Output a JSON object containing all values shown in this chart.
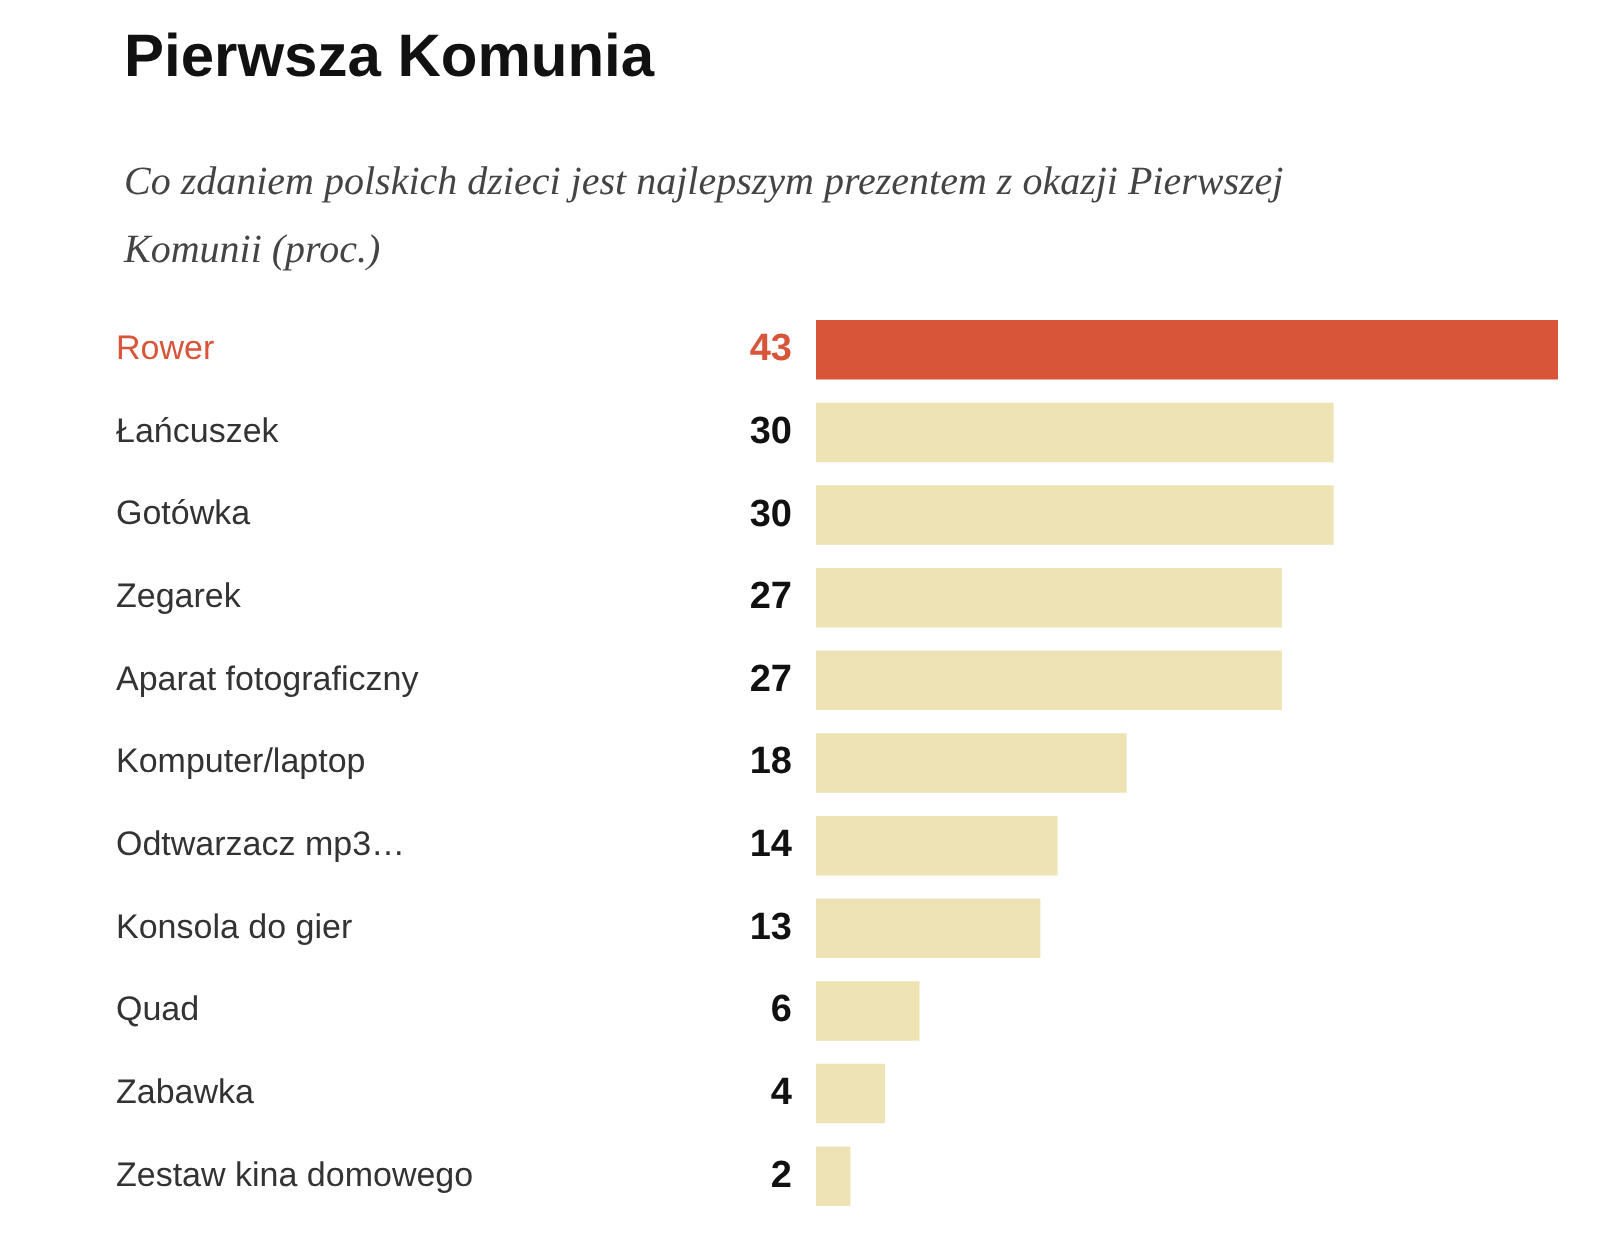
{
  "chart_data": {
    "type": "bar",
    "orientation": "horizontal",
    "title": "Pierwsza Komunia",
    "subtitle": "Co zdaniem polskich dzieci jest najlepszym prezentem z okazji Pierwszej Komunii (proc.)",
    "categories": [
      "Rower",
      "Łańcuszek",
      "Gotówka",
      "Zegarek",
      "Aparat fotograficzny",
      "Komputer/laptop",
      "Odtwarzacz mp3…",
      "Konsola do gier",
      "Quad",
      "Zabawka",
      "Zestaw kina domowego"
    ],
    "values": [
      43,
      30,
      30,
      27,
      27,
      18,
      14,
      13,
      6,
      4,
      2
    ],
    "colors": [
      "#d9553a",
      "#eee3b5",
      "#eee3b5",
      "#eee3b5",
      "#eee3b5",
      "#eee3b5",
      "#eee3b5",
      "#eee3b5",
      "#eee3b5",
      "#eee3b5",
      "#eee3b5"
    ],
    "xlim": [
      0,
      43
    ],
    "data_labels": true
  }
}
